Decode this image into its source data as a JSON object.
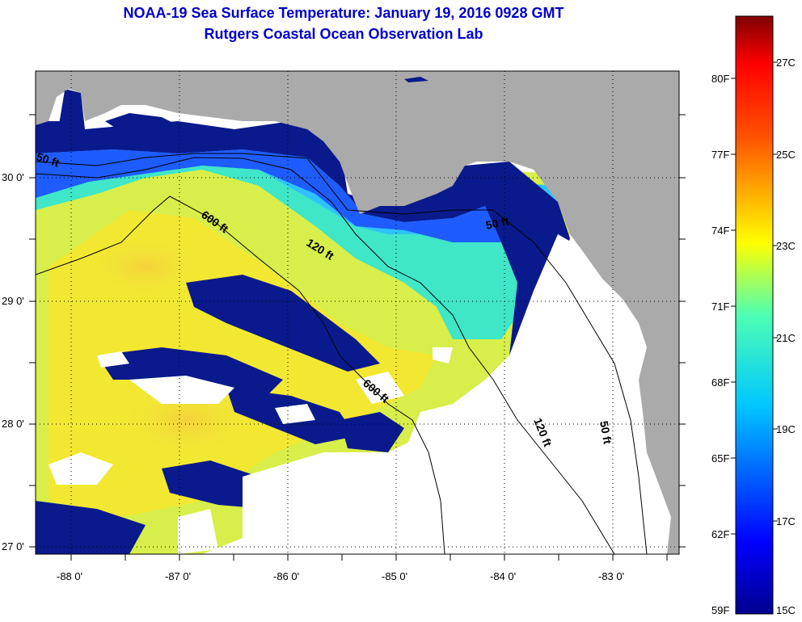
{
  "title": {
    "line1": "NOAA-19 Sea Surface Temperature:  January 19, 2016 0928 GMT",
    "line2": "Rutgers Coastal Ocean Observation Lab"
  },
  "axes": {
    "lat_labels": [
      "30 0'",
      "29 0'",
      "28 0'",
      "27 0'"
    ],
    "lon_labels": [
      "-88 0'",
      "-87 0'",
      "-86 0'",
      "-85 0'",
      "-84 0'",
      "-83 0'"
    ]
  },
  "contours": {
    "c50_west": "50 ft",
    "c600_north": "600 ft",
    "c120_north": "120 ft",
    "c50_east": "50 ft",
    "c600_south": "600 ft",
    "c120_south": "120 ft",
    "c50_south": "50 ft"
  },
  "colorbar": {
    "fahrenheit_labels": [
      "80F",
      "77F",
      "74F",
      "71F",
      "68F",
      "65F",
      "62F",
      "59F"
    ],
    "celsius_labels": [
      "27C",
      "25C",
      "23C",
      "21C",
      "19C",
      "17C",
      "15C"
    ],
    "min_c": 15,
    "max_c": 28
  },
  "colors": {
    "title": "#0000cc",
    "land": "#aaaaaa",
    "cold": "#0a1a8c",
    "warm": "#f2e832"
  }
}
